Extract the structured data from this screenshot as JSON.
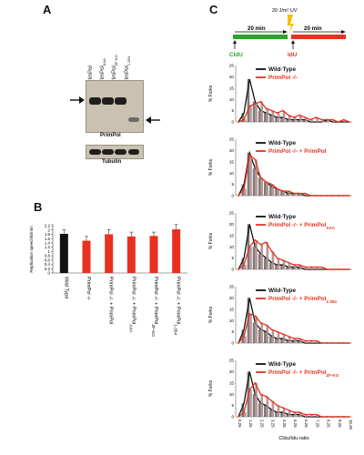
{
  "panels": {
    "a": {
      "letter": "A",
      "lanes": [
        {
          "base": "PrimPol",
          "sub": ""
        },
        {
          "base": "PrimPol",
          "sub": "AXA"
        },
        {
          "base": "PrimPol",
          "sub": "ZF-KO"
        },
        {
          "base": "PrimPol",
          "sub": "1-354"
        }
      ],
      "blot_label": "PrimPol",
      "loading_label": "Tubulin"
    },
    "b": {
      "letter": "B"
    },
    "c": {
      "letter": "C",
      "timeline": {
        "pulse1_label": "20 min",
        "pulse2_label": "20 min",
        "uv_label": "20 J/m² UV",
        "cldu_label": "CldU",
        "idu_label": "IdU",
        "colors": {
          "pulse1": "#2aa52a",
          "pulse2": "#e8321e",
          "uv": "#f2c200"
        }
      }
    }
  },
  "chart_data": [
    {
      "type": "bar",
      "panel": "B",
      "ylabel": "Replication speed kb/min",
      "ylim": [
        0,
        2.2
      ],
      "yticks": [
        "0",
        "0.2",
        "0.4",
        "0.6",
        "0.8",
        "1",
        "1.2",
        "1.4",
        "1.6",
        "1.8",
        "2",
        "2.2"
      ],
      "categories": [
        {
          "base": "Wild Type",
          "sub": ""
        },
        {
          "base": "PrimPol -/-",
          "sub": ""
        },
        {
          "base": "PrimPol -/- + PrimPol",
          "sub": ""
        },
        {
          "base": "PrimPol -/- + PrimPol",
          "sub": "AXA"
        },
        {
          "base": "PrimPol -/- + PrimPol",
          "sub": "ZF-KO"
        },
        {
          "base": "PrimPol -/- + PrimPol",
          "sub": "1-354"
        }
      ],
      "values": [
        1.82,
        1.5,
        1.8,
        1.7,
        1.72,
        2.03
      ],
      "errors": [
        0.18,
        0.2,
        0.22,
        0.2,
        0.18,
        0.22
      ],
      "colors": [
        "#111111",
        "#e8321e",
        "#e8321e",
        "#e8321e",
        "#e8321e",
        "#e8321e"
      ]
    },
    {
      "type": "line",
      "panel": "C",
      "xlabel": "Cldu/Idu ratio",
      "ylabel": "% Forks",
      "ylim": [
        0,
        25
      ],
      "yticks": [
        "0",
        "5",
        "10",
        "15",
        "20",
        "25"
      ],
      "xticks": [
        "0.25",
        "1.25",
        "2.25",
        "3.25",
        "4.25",
        "5.25",
        "6.25",
        "7.25",
        "8.25",
        "9.25",
        "10.25"
      ],
      "xticks_short": [
        "0.25",
        "1.25",
        "",
        "3.25",
        "",
        "5.25",
        "6.25",
        "",
        "8.25",
        "",
        "10.25"
      ],
      "x": [
        0.25,
        0.75,
        1.25,
        1.75,
        2.25,
        2.75,
        3.25,
        3.75,
        4.25,
        4.75,
        5.25,
        5.75,
        6.25,
        6.75,
        7.25,
        7.75,
        8.25,
        8.75,
        9.25,
        9.75,
        10.25
      ],
      "colors": {
        "wild_type": "#111111",
        "mutant": "#e8321e",
        "hist": "#b38a8a"
      },
      "panels": [
        {
          "legend": [
            {
              "base": "Wild-Type",
              "sub": ""
            },
            {
              "base": "PrimPol -/-",
              "sub": ""
            }
          ],
          "series": [
            {
              "name": "Wild-Type",
              "values": [
                0,
                4,
                19,
                9,
                5,
                4,
                3,
                2,
                2,
                1,
                1,
                1,
                1,
                0,
                0,
                0,
                1,
                0,
                0,
                0,
                0
              ]
            },
            {
              "name": "PrimPol -/-",
              "values": [
                0,
                1,
                7,
                8,
                9,
                6,
                5,
                4,
                5,
                3,
                2,
                3,
                2,
                1,
                2,
                1,
                1,
                1,
                0,
                1,
                0
              ]
            }
          ]
        },
        {
          "legend": [
            {
              "base": "Wild-Type",
              "sub": ""
            },
            {
              "base": "PrimPol -/- + PrimPol",
              "sub": ""
            }
          ],
          "series": [
            {
              "name": "Wild-Type",
              "values": [
                0,
                5,
                19,
                12,
                8,
                6,
                4,
                3,
                2,
                1,
                1,
                1,
                0,
                0,
                0,
                0,
                0,
                0,
                0,
                0,
                0
              ]
            },
            {
              "name": "PrimPol -/- + PrimPol",
              "values": [
                0,
                3,
                18,
                16,
                8,
                6,
                5,
                3,
                2,
                2,
                1,
                1,
                1,
                0,
                0,
                0,
                0,
                0,
                0,
                0,
                0
              ]
            }
          ]
        },
        {
          "legend": [
            {
              "base": "Wild-Type",
              "sub": ""
            },
            {
              "base": "PrimPol -/- + PrimPol",
              "sub": "AXA"
            }
          ],
          "series": [
            {
              "name": "Wild-Type",
              "values": [
                0,
                5,
                20,
                10,
                7,
                5,
                3,
                2,
                2,
                1,
                1,
                1,
                0,
                0,
                0,
                0,
                0,
                0,
                0,
                0,
                0
              ]
            },
            {
              "name": "PrimPol -/- + PrimPol AXA",
              "values": [
                0,
                2,
                10,
                13,
                11,
                12,
                8,
                5,
                4,
                3,
                2,
                2,
                1,
                1,
                1,
                1,
                0,
                0,
                0,
                0,
                0
              ]
            }
          ]
        },
        {
          "legend": [
            {
              "base": "Wild-Type",
              "sub": ""
            },
            {
              "base": "PrimPol -/- + PrimPol",
              "sub": "1-354"
            }
          ],
          "series": [
            {
              "name": "Wild-Type",
              "values": [
                0,
                6,
                20,
                9,
                6,
                5,
                3,
                2,
                2,
                1,
                1,
                1,
                0,
                0,
                0,
                0,
                0,
                0,
                0,
                0,
                0
              ]
            },
            {
              "name": "PrimPol -/- + PrimPol 1-354",
              "values": [
                0,
                3,
                13,
                12,
                9,
                8,
                6,
                5,
                4,
                3,
                2,
                2,
                1,
                1,
                1,
                0,
                0,
                0,
                0,
                0,
                0
              ]
            }
          ]
        },
        {
          "legend": [
            {
              "base": "Wild-Type",
              "sub": ""
            },
            {
              "base": "PrimPol -/- + PrimPol",
              "sub": "ZF-KO"
            }
          ],
          "series": [
            {
              "name": "Wild-Type",
              "values": [
                0,
                6,
                20,
                10,
                6,
                5,
                3,
                2,
                2,
                1,
                1,
                1,
                0,
                0,
                0,
                0,
                0,
                0,
                0,
                0,
                0
              ]
            },
            {
              "name": "PrimPol -/- + PrimPol ZF-KO",
              "values": [
                0,
                2,
                12,
                15,
                10,
                9,
                7,
                5,
                4,
                3,
                2,
                2,
                1,
                1,
                1,
                0,
                0,
                0,
                0,
                0,
                0
              ]
            }
          ]
        }
      ]
    }
  ]
}
